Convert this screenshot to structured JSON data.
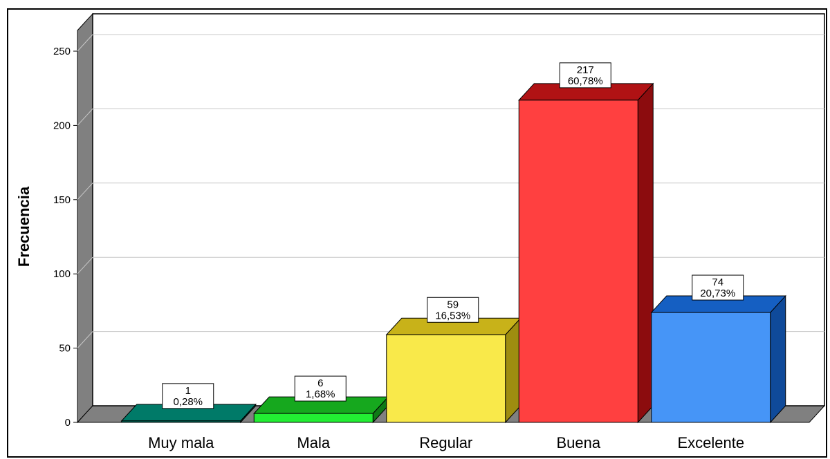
{
  "chart_data": {
    "type": "bar",
    "style": "3d",
    "title": "",
    "xlabel": "",
    "ylabel": "Frecuencia",
    "ylim": [
      0,
      250
    ],
    "yticks": [
      0,
      50,
      100,
      150,
      200,
      250
    ],
    "grid": true,
    "categories": [
      "Muy mala",
      "Mala",
      "Regular",
      "Buena",
      "Excelente"
    ],
    "values": [
      1,
      6,
      59,
      217,
      74
    ],
    "percent_labels": [
      "0,28%",
      "1,68%",
      "16,53%",
      "60,78%",
      "20,73%"
    ],
    "colors": [
      {
        "front": "#00705f",
        "top": "#007a68",
        "side": "#005146"
      },
      {
        "front": "#22ee33",
        "top": "#16a81e",
        "side": "#0f7a16"
      },
      {
        "front": "#f9e94a",
        "top": "#c8b219",
        "side": "#9e8d10"
      },
      {
        "front": "#ff4040",
        "top": "#b01214",
        "side": "#8c0c0e"
      },
      {
        "front": "#4695f7",
        "top": "#155fc2",
        "side": "#0f4a9a"
      }
    ],
    "wall_color": "#808080",
    "floor_color": "#808080"
  }
}
